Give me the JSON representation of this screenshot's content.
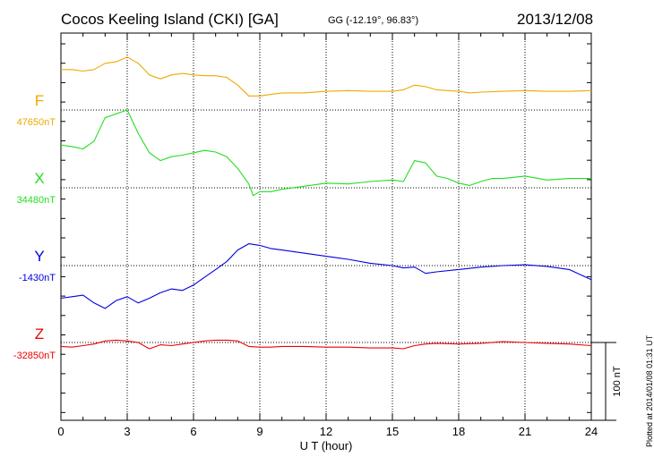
{
  "header": {
    "title": "Cocos Keeling Island (CKI)  [GA]",
    "coords": "GG (-12.19°,  96.83°)",
    "date": "2013/12/08"
  },
  "footer": {
    "plotted": "Plotted at 2014/01/08 01:31  UT"
  },
  "chart_data": {
    "type": "line",
    "xlabel": "U T (hour)",
    "xlim": [
      0,
      24
    ],
    "xticks": [
      "0",
      "3",
      "6",
      "9",
      "12",
      "15",
      "18",
      "21",
      "24"
    ],
    "scale_bar_label": "100 nT",
    "scale_bar_nT": 100,
    "grid": "dotted vertical every 3 hours",
    "series": [
      {
        "name": "F",
        "baseline_label": "47650nT",
        "baseline_nT": 47650,
        "color": "#f0a800",
        "x": [
          0,
          0.5,
          1,
          1.5,
          2,
          2.5,
          3,
          3.5,
          4,
          4.5,
          5,
          5.5,
          6,
          6.5,
          7,
          7.5,
          8,
          8.5,
          9,
          9.5,
          10,
          11,
          12,
          13,
          14,
          15,
          15.5,
          16,
          16.5,
          17,
          18,
          18.5,
          19,
          20,
          21,
          22,
          23,
          24
        ],
        "y": [
          52,
          52,
          50,
          52,
          60,
          62,
          68,
          60,
          45,
          40,
          45,
          47,
          45,
          44,
          44,
          42,
          32,
          18,
          18,
          20,
          22,
          22,
          24,
          25,
          24,
          24,
          26,
          32,
          30,
          26,
          24,
          22,
          23,
          24,
          25,
          24,
          24,
          25
        ]
      },
      {
        "name": "X",
        "baseline_label": "34480nT",
        "baseline_nT": 34480,
        "color": "#22dd22",
        "x": [
          0,
          0.5,
          1,
          1.5,
          2,
          2.5,
          3,
          3.5,
          4,
          4.5,
          5,
          5.5,
          6,
          6.5,
          7,
          7.5,
          8,
          8.5,
          8.7,
          9,
          9.5,
          10,
          11,
          12,
          13,
          14,
          15,
          15.5,
          16,
          16.5,
          17,
          17.5,
          18,
          18.5,
          19,
          19.5,
          20,
          21,
          22,
          23,
          24
        ],
        "y": [
          55,
          53,
          50,
          60,
          90,
          95,
          100,
          70,
          45,
          35,
          40,
          42,
          45,
          48,
          46,
          40,
          25,
          5,
          -10,
          -5,
          -5,
          -2,
          2,
          6,
          5,
          8,
          10,
          8,
          35,
          32,
          15,
          12,
          6,
          3,
          8,
          12,
          12,
          15,
          10,
          12,
          12
        ]
      },
      {
        "name": "Y",
        "baseline_label": "-1430nT",
        "baseline_nT": -1430,
        "color": "#0000dd",
        "x": [
          0,
          0.5,
          1,
          1.5,
          2,
          2.5,
          3,
          3.5,
          4,
          4.5,
          5,
          5.5,
          6,
          6.5,
          7,
          7.5,
          8,
          8.5,
          9,
          9.5,
          10,
          11,
          12,
          13,
          14,
          15,
          15.5,
          16,
          16.5,
          17,
          18,
          19,
          20,
          21,
          22,
          23,
          24
        ],
        "y": [
          -42,
          -40,
          -38,
          -48,
          -55,
          -45,
          -40,
          -48,
          -42,
          -35,
          -30,
          -32,
          -25,
          -15,
          -5,
          5,
          20,
          28,
          26,
          22,
          20,
          16,
          12,
          8,
          3,
          0,
          -3,
          -2,
          -10,
          -8,
          -5,
          -2,
          0,
          1,
          -1,
          -5,
          -18
        ]
      },
      {
        "name": "Z",
        "baseline_label": "-32850nT",
        "baseline_nT": -32850,
        "color": "#ee0000",
        "x": [
          0,
          0.5,
          1,
          1.5,
          2,
          2.5,
          3,
          3.5,
          4,
          4.5,
          5,
          5.5,
          6,
          6.5,
          7,
          7.5,
          8,
          8.5,
          9,
          9.5,
          10,
          11,
          12,
          13,
          14,
          15,
          15.5,
          16,
          16.5,
          17,
          18,
          19,
          20,
          21,
          22,
          23,
          24
        ],
        "y": [
          -5,
          -6,
          -4,
          -2,
          2,
          3,
          2,
          0,
          -8,
          -3,
          -4,
          -2,
          0,
          2,
          3,
          3,
          2,
          -5,
          -6,
          -6,
          -5,
          -5,
          -6,
          -6,
          -7,
          -7,
          -8,
          -4,
          -2,
          -1,
          -2,
          -1,
          1,
          0,
          -1,
          -2,
          -4
        ]
      }
    ]
  }
}
